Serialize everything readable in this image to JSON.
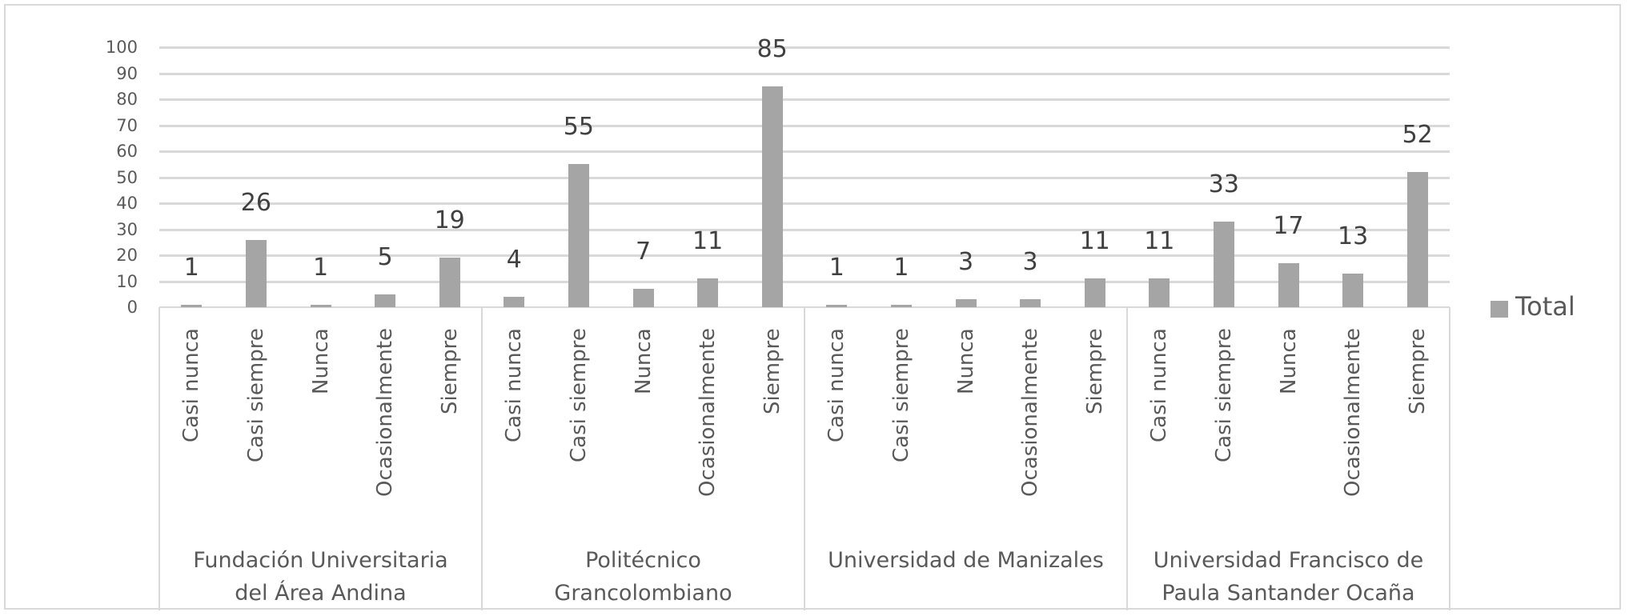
{
  "chart_data": {
    "type": "bar",
    "title": "",
    "xlabel": "",
    "ylabel": "",
    "ylim": [
      0,
      100
    ],
    "yticks": [
      0,
      10,
      20,
      30,
      40,
      50,
      60,
      70,
      80,
      90,
      100
    ],
    "grid": true,
    "legend_position": "right",
    "bar_color": "#a5a5a5",
    "gridline_color": "#d9d9d9",
    "groups": [
      {
        "name": "Fundación Universitaria del Área Andina",
        "name_lines": [
          "Fundación Universitaria",
          "del Área Andina"
        ],
        "categories": [
          "Casi nunca",
          "Casi siempre",
          "Nunca",
          "Ocasionalmente",
          "Siempre"
        ],
        "values": [
          1,
          26,
          1,
          5,
          19
        ]
      },
      {
        "name": "Politécnico Grancolombiano",
        "name_lines": [
          "Politécnico",
          "Grancolombiano"
        ],
        "categories": [
          "Casi nunca",
          "Casi siempre",
          "Nunca",
          "Ocasionalmente",
          "Siempre"
        ],
        "values": [
          4,
          55,
          7,
          11,
          85
        ]
      },
      {
        "name": "Universidad de Manizales",
        "name_lines": [
          "Universidad de Manizales"
        ],
        "categories": [
          "Casi nunca",
          "Casi siempre",
          "Nunca",
          "Ocasionalmente",
          "Siempre"
        ],
        "values": [
          1,
          1,
          3,
          3,
          11
        ]
      },
      {
        "name": "Universidad Francisco de Paula Santander Ocaña",
        "name_lines": [
          "Universidad Francisco de",
          "Paula Santander Ocaña"
        ],
        "categories": [
          "Casi nunca",
          "Casi siempre",
          "Nunca",
          "Ocasionalmente",
          "Siempre"
        ],
        "values": [
          11,
          33,
          17,
          13,
          52
        ]
      }
    ],
    "series": [
      {
        "name": "Total",
        "values": [
          1,
          26,
          1,
          5,
          19,
          4,
          55,
          7,
          11,
          85,
          1,
          1,
          3,
          3,
          11,
          11,
          33,
          17,
          13,
          52
        ]
      }
    ],
    "legend": [
      "Total"
    ]
  },
  "legend": {
    "label": "Total"
  }
}
